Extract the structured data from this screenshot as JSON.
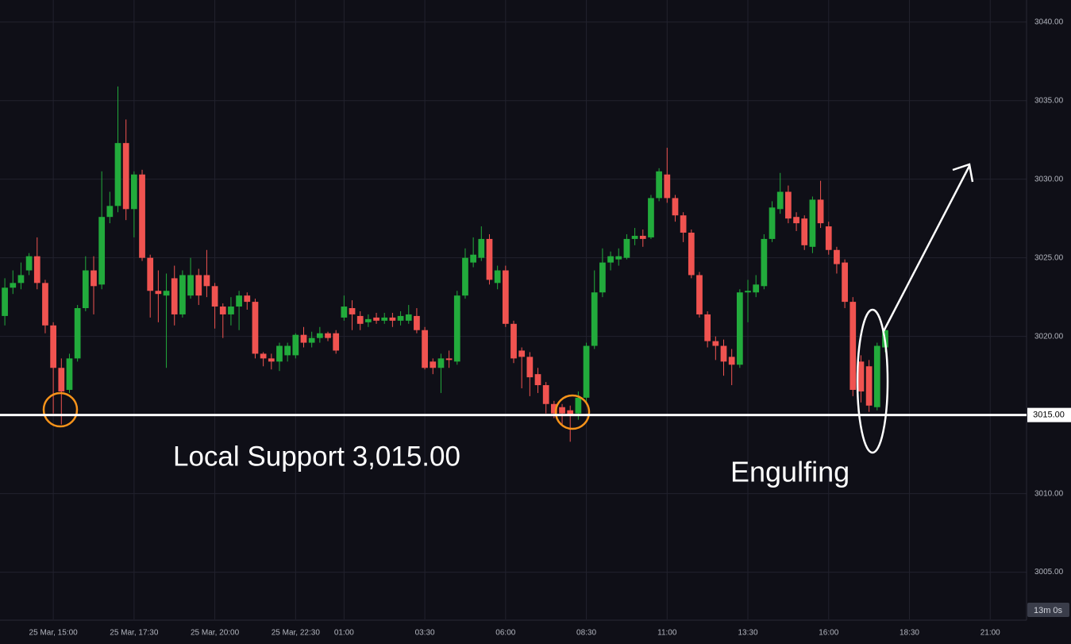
{
  "chart_data": {
    "type": "candlestick",
    "categories": [
      null,
      null,
      null,
      null,
      null,
      null,
      "25 Mar, 15:00",
      null,
      null,
      null,
      null,
      null,
      null,
      null,
      null,
      null,
      "25 Mar, 17:30",
      null,
      null,
      null,
      null,
      null,
      null,
      null,
      null,
      null,
      "25 Mar, 20:00",
      null,
      null,
      null,
      null,
      null,
      null,
      null,
      null,
      null,
      "25 Mar, 22:30",
      null,
      null,
      null,
      null,
      null,
      "01:00",
      null,
      null,
      null,
      null,
      null,
      null,
      null,
      null,
      null,
      "03:30",
      null,
      null,
      null,
      null,
      null,
      null,
      null,
      null,
      null,
      "06:00",
      null,
      null,
      null,
      null,
      null,
      null,
      null,
      null,
      null,
      "08:30",
      null,
      null,
      null,
      null,
      null,
      null,
      null,
      null,
      null,
      "11:00",
      null,
      null,
      null,
      null,
      null,
      null,
      null,
      null,
      null,
      "13:30",
      null,
      null,
      null,
      null,
      null,
      null,
      null,
      null,
      null,
      "16:00",
      null,
      null,
      null,
      null,
      null,
      null,
      null,
      null,
      null,
      "18:30",
      null,
      null,
      null,
      null,
      null,
      null,
      null,
      null,
      null,
      "21:00",
      null,
      null,
      null,
      null
    ],
    "open": [
      3021.3,
      3023.1,
      3023.4,
      3024.2,
      3025.1,
      3023.4,
      3020.7,
      3018.0,
      3016.6,
      3018.6,
      3021.8,
      3024.2,
      3023.3,
      3027.6,
      3028.3,
      3032.3,
      3028.1,
      3030.3,
      3025.0,
      3022.9,
      3022.6,
      3023.7,
      3021.4,
      3022.6,
      3023.9,
      3023.9,
      3023.2,
      3021.9,
      3021.4,
      3021.9,
      3022.6,
      3022.2,
      3018.9,
      3018.6,
      3018.4,
      3018.8,
      3018.8,
      3020.1,
      3019.6,
      3019.9,
      3020.2,
      3020.2,
      3021.2,
      3021.8,
      3021.3,
      3020.9,
      3021.2,
      3021.0,
      3021.2,
      3021.0,
      3021.0,
      3021.3,
      3020.4,
      3018.4,
      3018.0,
      3018.6,
      3018.4,
      3022.6,
      3024.7,
      3025.0,
      3026.2,
      3023.4,
      3024.2,
      3020.8,
      3019.1,
      3018.7,
      3017.6,
      3016.9,
      3015.7,
      3015.5,
      3015.3,
      3015.1,
      3016.1,
      3019.4,
      3022.8,
      3024.7,
      3024.9,
      3025.0,
      3026.2,
      3026.4,
      3026.3,
      3028.8,
      3030.3,
      3028.8,
      3027.7,
      3026.6,
      3023.9,
      3021.4,
      3019.7,
      3019.4,
      3018.7,
      3018.2,
      3022.8,
      3022.8,
      3023.2,
      3026.2,
      3028.1,
      3029.2,
      3027.6,
      3027.5,
      3025.7,
      3028.7,
      3027.0,
      3025.5,
      3024.7,
      3022.2,
      3018.4,
      3018.1,
      3015.5,
      3019.3,
      null,
      null,
      null,
      null,
      null,
      null,
      null,
      null,
      null,
      null,
      null,
      null,
      null,
      null,
      null,
      null,
      null
    ],
    "high": [
      3023.7,
      3024.2,
      3024.7,
      3025.3,
      3026.3,
      3023.6,
      3020.9,
      3018.6,
      3018.9,
      3022.0,
      3025.1,
      3025.1,
      3030.5,
      3029.2,
      3035.9,
      3033.8,
      3030.5,
      3030.6,
      3025.2,
      3024.2,
      3024.0,
      3024.5,
      3024.2,
      3025.0,
      3024.3,
      3025.5,
      3023.4,
      3022.1,
      3022.5,
      3022.9,
      3022.8,
      3022.4,
      3019.0,
      3018.9,
      3019.6,
      3019.6,
      3020.2,
      3020.6,
      3020.3,
      3020.6,
      3020.3,
      3020.4,
      3022.6,
      3022.3,
      3021.6,
      3021.4,
      3021.5,
      3021.5,
      3021.5,
      3021.6,
      3022.0,
      3021.8,
      3020.6,
      3018.6,
      3018.9,
      3019.1,
      3022.9,
      3025.6,
      3026.3,
      3027.0,
      3026.5,
      3024.5,
      3024.5,
      3021.0,
      3019.3,
      3019.0,
      3018.0,
      3017.1,
      3015.9,
      3015.7,
      3015.6,
      3016.5,
      3019.6,
      3024.2,
      3025.6,
      3025.4,
      3025.6,
      3026.5,
      3026.9,
      3026.8,
      3029.0,
      3030.7,
      3032.0,
      3029.0,
      3027.9,
      3026.8,
      3024.1,
      3021.6,
      3020.0,
      3019.8,
      3019.2,
      3023.0,
      3023.6,
      3023.9,
      3026.5,
      3028.6,
      3030.4,
      3029.6,
      3027.9,
      3027.7,
      3028.9,
      3029.9,
      3027.3,
      3025.7,
      3024.9,
      3022.5,
      3018.8,
      3018.5,
      3019.6,
      3020.6,
      null,
      null,
      null,
      null,
      null,
      null,
      null,
      null,
      null,
      null,
      null,
      null,
      null,
      null,
      null,
      null,
      null
    ],
    "low": [
      3020.7,
      3022.7,
      3023.0,
      3023.9,
      3023.0,
      3020.2,
      3015.1,
      3014.4,
      3016.4,
      3018.4,
      3021.6,
      3021.4,
      3023.0,
      3027.2,
      3027.9,
      3027.4,
      3026.3,
      3024.8,
      3021.2,
      3020.9,
      3018.0,
      3020.7,
      3021.2,
      3022.4,
      3022.0,
      3022.5,
      3020.5,
      3019.9,
      3020.7,
      3020.4,
      3021.7,
      3018.6,
      3018.1,
      3017.9,
      3017.8,
      3018.4,
      3018.6,
      3019.3,
      3019.3,
      3019.6,
      3019.7,
      3018.9,
      3021.0,
      3020.4,
      3020.4,
      3020.6,
      3020.8,
      3020.8,
      3020.6,
      3020.7,
      3020.8,
      3020.2,
      3017.9,
      3017.6,
      3016.4,
      3018.0,
      3018.2,
      3022.4,
      3024.4,
      3024.8,
      3023.3,
      3023.0,
      3020.6,
      3018.3,
      3016.7,
      3016.2,
      3016.4,
      3015.1,
      3014.8,
      3014.4,
      3013.3,
      3014.7,
      3015.8,
      3019.2,
      3022.5,
      3024.2,
      3024.5,
      3024.9,
      3025.8,
      3025.7,
      3026.2,
      3028.6,
      3028.5,
      3027.3,
      3026.0,
      3023.7,
      3021.2,
      3019.3,
      3018.5,
      3017.5,
      3016.9,
      3018.0,
      3020.9,
      3022.5,
      3023.0,
      3026.0,
      3027.8,
      3027.2,
      3026.7,
      3025.5,
      3025.3,
      3026.9,
      3025.2,
      3024.0,
      3021.8,
      3016.2,
      3015.8,
      3015.2,
      3015.3,
      3019.0,
      null,
      null,
      null,
      null,
      null,
      null,
      null,
      null,
      null,
      null,
      null,
      null,
      null,
      null,
      null,
      null,
      null
    ],
    "close": [
      3023.1,
      3023.4,
      3023.9,
      3025.1,
      3023.4,
      3020.7,
      3018.0,
      3016.5,
      3018.6,
      3021.8,
      3024.2,
      3023.2,
      3027.6,
      3028.3,
      3032.3,
      3028.1,
      3030.3,
      3025.0,
      3022.9,
      3022.7,
      3022.9,
      3021.4,
      3023.9,
      3023.9,
      3022.6,
      3023.2,
      3021.9,
      3021.4,
      3021.9,
      3022.6,
      3022.2,
      3018.9,
      3018.6,
      3018.4,
      3019.4,
      3019.4,
      3020.1,
      3019.6,
      3019.9,
      3020.2,
      3019.9,
      3019.1,
      3021.9,
      3021.4,
      3020.8,
      3021.1,
      3021.0,
      3021.2,
      3021.0,
      3021.3,
      3021.4,
      3020.4,
      3018.0,
      3018.0,
      3018.6,
      3018.5,
      3022.6,
      3025.0,
      3025.2,
      3026.2,
      3023.6,
      3024.2,
      3020.8,
      3018.6,
      3018.7,
      3017.4,
      3016.9,
      3015.7,
      3015.1,
      3015.1,
      3015.0,
      3016.1,
      3019.4,
      3022.8,
      3024.7,
      3025.1,
      3025.1,
      3026.2,
      3026.4,
      3026.2,
      3028.8,
      3030.5,
      3028.8,
      3027.7,
      3026.6,
      3023.9,
      3021.4,
      3019.7,
      3019.4,
      3018.4,
      3018.2,
      3022.8,
      3022.9,
      3023.3,
      3026.2,
      3028.2,
      3029.2,
      3027.5,
      3027.2,
      3025.8,
      3028.7,
      3027.2,
      3025.5,
      3024.6,
      3022.2,
      3016.6,
      3016.5,
      3015.6,
      3019.4,
      3020.4,
      null,
      null,
      null,
      null,
      null,
      null,
      null,
      null,
      null,
      null,
      null,
      null,
      null,
      null,
      null,
      null,
      null
    ],
    "up_color": "#22ab3c",
    "down_color": "#f05350",
    "ylim": [
      3002,
      3041.4
    ],
    "yticks": [
      {
        "value": 3005,
        "label": "3005.00"
      },
      {
        "value": 3010,
        "label": "3010.00"
      },
      {
        "value": 3020,
        "label": "3020.00"
      },
      {
        "value": 3025,
        "label": "3025.00"
      },
      {
        "value": 3030,
        "label": "3030.00"
      },
      {
        "value": 3035,
        "label": "3035.00"
      },
      {
        "value": 3040,
        "label": "3040.00"
      }
    ],
    "grid": true,
    "support": {
      "value": 3015,
      "label": "3015.00"
    },
    "annotations": [
      "Local Support 3,015.00",
      "Engulfing"
    ],
    "countdown": "13m 0s"
  }
}
